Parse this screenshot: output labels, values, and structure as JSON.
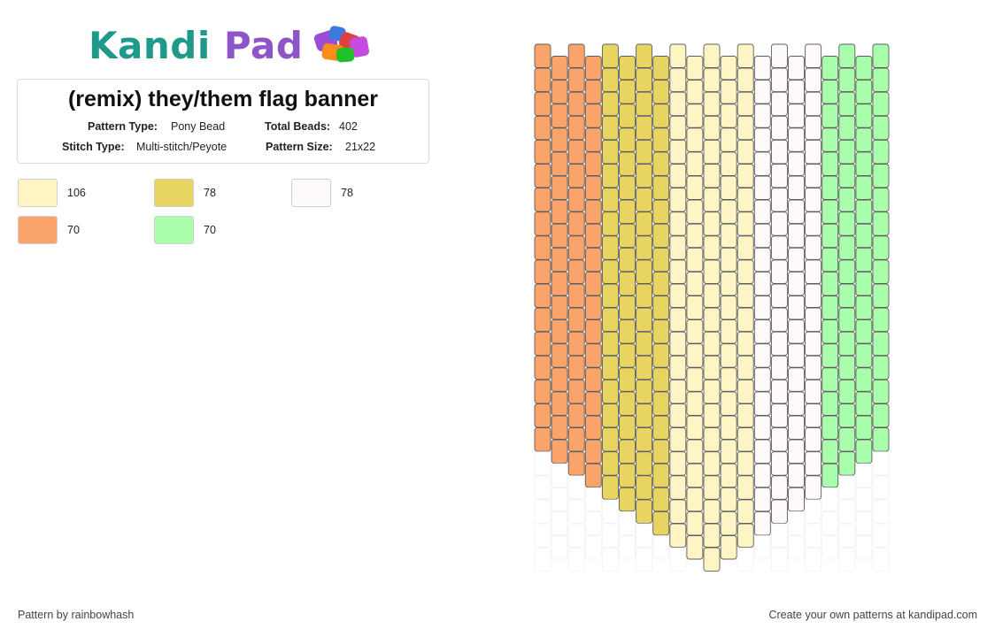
{
  "logo": {
    "word1": "Kandi",
    "word2": "Pad"
  },
  "pattern": {
    "title": "(remix) they/them flag banner",
    "pattern_type_label": "Pattern Type:",
    "pattern_type": "Pony Bead",
    "total_beads_label": "Total Beads:",
    "total_beads": "402",
    "stitch_type_label": "Stitch Type:",
    "stitch_type": "Multi-stitch/Peyote",
    "pattern_size_label": "Pattern Size:",
    "pattern_size": "21x22"
  },
  "colors": [
    {
      "hex": "#fff5c4",
      "count": "106"
    },
    {
      "hex": "#e8d460",
      "count": "78"
    },
    {
      "hex": "#fefafa",
      "count": "78"
    },
    {
      "hex": "#faa46c",
      "count": "70"
    },
    {
      "hex": "#aaffac",
      "count": "70"
    }
  ],
  "grid_columns": [
    {
      "color": "#faa46c",
      "beads": 17
    },
    {
      "color": "#faa46c",
      "beads": 17
    },
    {
      "color": "#faa46c",
      "beads": 18
    },
    {
      "color": "#faa46c",
      "beads": 18
    },
    {
      "color": "#e8d460",
      "beads": 19
    },
    {
      "color": "#e8d460",
      "beads": 19
    },
    {
      "color": "#e8d460",
      "beads": 20
    },
    {
      "color": "#e8d460",
      "beads": 20
    },
    {
      "color": "#fff5c4",
      "beads": 21
    },
    {
      "color": "#fff5c4",
      "beads": 21
    },
    {
      "color": "#fff5c4",
      "beads": 22
    },
    {
      "color": "#fff5c4",
      "beads": 21
    },
    {
      "color": "#fff5c4",
      "beads": 21
    },
    {
      "color": "#fefafa",
      "beads": 20
    },
    {
      "color": "#fefafa",
      "beads": 20
    },
    {
      "color": "#fefafa",
      "beads": 19
    },
    {
      "color": "#fefafa",
      "beads": 19
    },
    {
      "color": "#aaffac",
      "beads": 18
    },
    {
      "color": "#aaffac",
      "beads": 18
    },
    {
      "color": "#aaffac",
      "beads": 17
    },
    {
      "color": "#aaffac",
      "beads": 17
    }
  ],
  "footer": {
    "credit": "Pattern by rainbowhash",
    "promo": "Create your own patterns at kandipad.com"
  }
}
